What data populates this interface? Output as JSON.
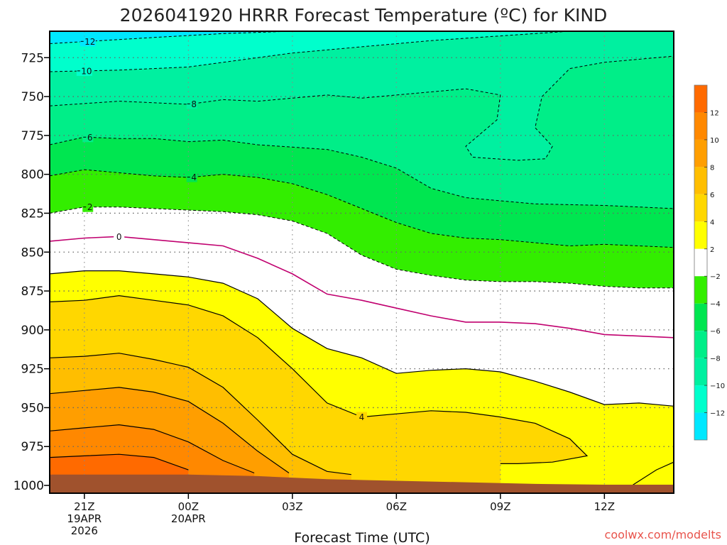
{
  "title": "2026041920 HRRR Forecast Temperature (ºC) for KIND",
  "credit": "coolwx.com/modelts",
  "chart_data": {
    "type": "contour",
    "title": "2026041920 HRRR Forecast Temperature (ºC) for KIND",
    "xlabel": "Forecast Time (UTC)",
    "ylabel": "",
    "x_unit": "hours since 2026-04-19 20Z",
    "xlim": [
      0,
      18
    ],
    "ylim": [
      1005,
      708
    ],
    "y_ticks": [
      725,
      750,
      775,
      800,
      825,
      850,
      875,
      900,
      925,
      950,
      975,
      1000
    ],
    "x_ticks": [
      {
        "x": 1,
        "lines": [
          "21Z",
          "19APR",
          "2026"
        ]
      },
      {
        "x": 4,
        "lines": [
          "00Z",
          "20APR"
        ]
      },
      {
        "x": 7,
        "lines": [
          "03Z"
        ]
      },
      {
        "x": 10,
        "lines": [
          "06Z"
        ]
      },
      {
        "x": 13,
        "lines": [
          "09Z"
        ]
      },
      {
        "x": 16,
        "lines": [
          "12Z"
        ]
      }
    ],
    "grid": true,
    "fills": [
      {
        "range": [
          -14,
          -12
        ],
        "color": "#00e8ff"
      },
      {
        "range": [
          -12,
          -10
        ],
        "color": "#00ffcc"
      },
      {
        "range": [
          -10,
          -8
        ],
        "color": "#00f0a0"
      },
      {
        "range": [
          -8,
          -6
        ],
        "color": "#00ee88"
      },
      {
        "range": [
          -6,
          -4
        ],
        "color": "#00e650"
      },
      {
        "range": [
          -4,
          -2
        ],
        "color": "#33ee00"
      },
      {
        "range": [
          -2,
          2
        ],
        "color": "#ffffff"
      },
      {
        "range": [
          2,
          4
        ],
        "color": "#ffff00"
      },
      {
        "range": [
          4,
          6
        ],
        "color": "#ffd700"
      },
      {
        "range": [
          6,
          8
        ],
        "color": "#ffbe00"
      },
      {
        "range": [
          8,
          10
        ],
        "color": "#ff9e00"
      },
      {
        "range": [
          10,
          12
        ],
        "color": "#ff8800"
      },
      {
        "range": [
          12,
          14
        ],
        "color": "#ff6a00"
      }
    ],
    "ground_color": "#a0522d",
    "freezing_line_color": "#c0006f",
    "isotherms": [
      {
        "value": -12,
        "label": "12",
        "label_at": 1.1,
        "points": [
          [
            0,
            716
          ],
          [
            3,
            712
          ],
          [
            5,
            709.5
          ],
          [
            7,
            708
          ]
        ]
      },
      {
        "value": -10,
        "label": "10",
        "label_at": 1.0,
        "points": [
          [
            0,
            734
          ],
          [
            2,
            733
          ],
          [
            4,
            731
          ],
          [
            5,
            728
          ],
          [
            7,
            722
          ],
          [
            9,
            718
          ],
          [
            11,
            714
          ],
          [
            13,
            711
          ],
          [
            15,
            708
          ]
        ]
      },
      {
        "value": -8,
        "label": "8",
        "label_at": 4.1,
        "points": [
          [
            0,
            756
          ],
          [
            2,
            753
          ],
          [
            4,
            755
          ],
          [
            5,
            752
          ],
          [
            6,
            753
          ],
          [
            7,
            751
          ],
          [
            8,
            749
          ],
          [
            9,
            751
          ],
          [
            10,
            749
          ],
          [
            12,
            745
          ],
          [
            13,
            749
          ],
          [
            12.9,
            765
          ],
          [
            12,
            782
          ],
          [
            12.2,
            789
          ],
          [
            13.5,
            791
          ],
          [
            14.3,
            790
          ],
          [
            14.5,
            782
          ],
          [
            14,
            770
          ],
          [
            14.2,
            750
          ],
          [
            15,
            732
          ],
          [
            16,
            728
          ],
          [
            17,
            726
          ],
          [
            18,
            724
          ]
        ]
      },
      {
        "value": -6,
        "label": "6",
        "label_at": 1.1,
        "points": [
          [
            0,
            781
          ],
          [
            1,
            776
          ],
          [
            2,
            777
          ],
          [
            3,
            777
          ],
          [
            4,
            779
          ],
          [
            5,
            778
          ],
          [
            6,
            781
          ],
          [
            8,
            784
          ],
          [
            9,
            789
          ],
          [
            10,
            796
          ],
          [
            11,
            809
          ],
          [
            12,
            815
          ],
          [
            14,
            819
          ],
          [
            16,
            820
          ],
          [
            18,
            822
          ]
        ]
      },
      {
        "value": -4,
        "label": "4",
        "label_at": 4.1,
        "points": [
          [
            0,
            801
          ],
          [
            1,
            797
          ],
          [
            2,
            799
          ],
          [
            3,
            801
          ],
          [
            4,
            802
          ],
          [
            5,
            800
          ],
          [
            6,
            802
          ],
          [
            7,
            806
          ],
          [
            8,
            813
          ],
          [
            9,
            822
          ],
          [
            10,
            831
          ],
          [
            11,
            838
          ],
          [
            12,
            841
          ],
          [
            13,
            842
          ],
          [
            14,
            844
          ],
          [
            15,
            846
          ],
          [
            16,
            845
          ],
          [
            18,
            847
          ]
        ]
      },
      {
        "value": -2,
        "label": "2",
        "label_at": 1.1,
        "points": [
          [
            0,
            825
          ],
          [
            1,
            821
          ],
          [
            2,
            821
          ],
          [
            3,
            822
          ],
          [
            4,
            823
          ],
          [
            5,
            824
          ],
          [
            6,
            826
          ],
          [
            7,
            830
          ],
          [
            8,
            838
          ],
          [
            9,
            852
          ],
          [
            10,
            861
          ],
          [
            11,
            865
          ],
          [
            12,
            868
          ],
          [
            13,
            869
          ],
          [
            14,
            869
          ],
          [
            15,
            870
          ],
          [
            16,
            872
          ],
          [
            17,
            873
          ],
          [
            18,
            873
          ]
        ]
      },
      {
        "value": 0,
        "label": "0",
        "label_at": 2.0,
        "freezing": true,
        "points": [
          [
            0,
            843
          ],
          [
            1,
            841
          ],
          [
            2,
            840
          ],
          [
            3,
            842
          ],
          [
            4,
            844
          ],
          [
            5,
            846
          ],
          [
            6,
            854
          ],
          [
            7,
            864
          ],
          [
            8,
            877
          ],
          [
            9,
            881
          ],
          [
            10,
            886
          ],
          [
            11,
            891
          ],
          [
            12,
            895
          ],
          [
            13,
            895
          ],
          [
            14,
            896
          ],
          [
            15,
            899
          ],
          [
            16,
            903
          ],
          [
            17,
            904
          ],
          [
            18,
            905
          ]
        ]
      },
      {
        "value": 2,
        "label": "",
        "label_at": 0,
        "points": [
          [
            0,
            864
          ],
          [
            1,
            862
          ],
          [
            2,
            862
          ],
          [
            3,
            864
          ],
          [
            4,
            866
          ],
          [
            5,
            870
          ],
          [
            6,
            880
          ],
          [
            7,
            899
          ],
          [
            8,
            912
          ],
          [
            9,
            918
          ],
          [
            10,
            928
          ],
          [
            11,
            926
          ],
          [
            12,
            925
          ],
          [
            13,
            927
          ],
          [
            14,
            933
          ],
          [
            15,
            940
          ],
          [
            16,
            948
          ],
          [
            17,
            947
          ],
          [
            18,
            949
          ]
        ]
      },
      {
        "value": 4,
        "label": "4",
        "label_at": 9.0,
        "points": [
          [
            0,
            882
          ],
          [
            1,
            881
          ],
          [
            2,
            878
          ],
          [
            3,
            881
          ],
          [
            4,
            884
          ],
          [
            5,
            891
          ],
          [
            6,
            905
          ],
          [
            7,
            925
          ],
          [
            8,
            947
          ],
          [
            9,
            956
          ],
          [
            10,
            954
          ],
          [
            11,
            952
          ],
          [
            12,
            953
          ],
          [
            13,
            956
          ],
          [
            14,
            960
          ],
          [
            15,
            970
          ],
          [
            15.5,
            981
          ],
          [
            14.5,
            985
          ],
          [
            13.5,
            986
          ],
          [
            13,
            986
          ]
        ]
      },
      {
        "value": 6,
        "label": "",
        "label_at": 0,
        "points": [
          [
            0,
            918
          ],
          [
            1,
            917
          ],
          [
            2,
            915
          ],
          [
            3,
            919
          ],
          [
            4,
            924
          ],
          [
            5,
            937
          ],
          [
            6,
            958
          ],
          [
            7,
            980
          ],
          [
            8,
            991
          ],
          [
            8.7,
            993
          ]
        ]
      },
      {
        "value": 8,
        "label": "",
        "label_at": 0,
        "points": [
          [
            0,
            941
          ],
          [
            1,
            939
          ],
          [
            2,
            937
          ],
          [
            3,
            940
          ],
          [
            4,
            946
          ],
          [
            5,
            960
          ],
          [
            6,
            978
          ],
          [
            6.9,
            992
          ]
        ]
      },
      {
        "value": 10,
        "label": "",
        "label_at": 0,
        "points": [
          [
            0,
            965
          ],
          [
            1,
            963
          ],
          [
            2,
            961
          ],
          [
            3,
            964
          ],
          [
            4,
            972
          ],
          [
            5,
            984
          ],
          [
            5.9,
            992
          ]
        ]
      },
      {
        "value": 12,
        "label": "",
        "label_at": 0,
        "points": [
          [
            0,
            982
          ],
          [
            1,
            981
          ],
          [
            2,
            980
          ],
          [
            3,
            982
          ],
          [
            4,
            990
          ]
        ]
      },
      {
        "value": 2,
        "label": "",
        "label_at": 0,
        "points": [
          [
            16.8,
            1000
          ],
          [
            17.5,
            990
          ],
          [
            18,
            985
          ]
        ]
      }
    ],
    "ground_surface": [
      [
        0,
        993
      ],
      [
        4,
        993
      ],
      [
        6,
        994
      ],
      [
        8,
        996
      ],
      [
        10,
        997
      ],
      [
        12,
        998
      ],
      [
        14,
        999
      ],
      [
        16,
        999.5
      ],
      [
        18,
        999.5
      ]
    ],
    "colorbar": {
      "labels": [
        "12",
        "10",
        "8",
        "6",
        "4",
        "2",
        "−2",
        "−4",
        "−6",
        "−8",
        "−10",
        "−12"
      ]
    }
  }
}
